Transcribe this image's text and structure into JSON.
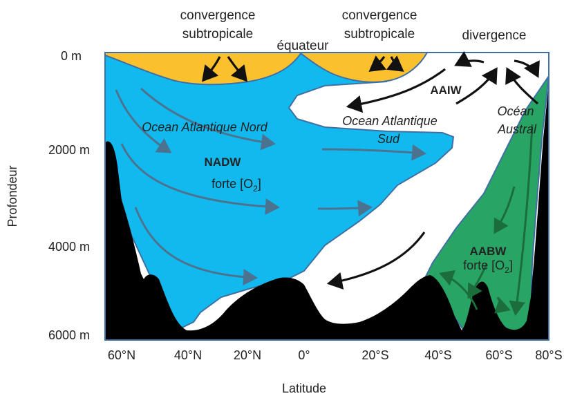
{
  "top_labels": {
    "convergence_left_line1": "convergence",
    "convergence_left_line2": "subtropicale",
    "equator": "équateur",
    "convergence_right_line1": "convergence",
    "convergence_right_line2": "subtropicale",
    "divergence": "divergence"
  },
  "y_axis": {
    "title": "Profondeur",
    "ticks": [
      "0 m",
      "2000 m",
      "4000 m",
      "6000 m"
    ]
  },
  "x_axis": {
    "title": "Latitude",
    "ticks": [
      "60°N",
      "40°N",
      "20°N",
      "0°",
      "20°S",
      "40°S",
      "60°S",
      "80°S"
    ]
  },
  "water_masses": {
    "north_atlantic": "Ocean Atlantique Nord",
    "nadw": "NADW",
    "nadw_oxygen_prefix": "forte [O",
    "nadw_oxygen_sub": "2",
    "nadw_oxygen_suffix": "]",
    "south_atlantic_line1": "Ocean Atlantique",
    "south_atlantic_line2": "Sud",
    "aaiw": "AAIW",
    "southern_ocean_line1": "Océan",
    "southern_ocean_line2": "Austral",
    "aabw": "AABW",
    "aabw_oxygen_prefix": "forte [O",
    "aabw_oxygen_sub": "2",
    "aabw_oxygen_suffix": "]"
  },
  "colors": {
    "nadw_blue": "#12b9ee",
    "aabw_green": "#28a464",
    "surface_yellow": "#fbc02d",
    "seafloor_black": "#000000",
    "frame_blue": "#3f6fa3"
  }
}
